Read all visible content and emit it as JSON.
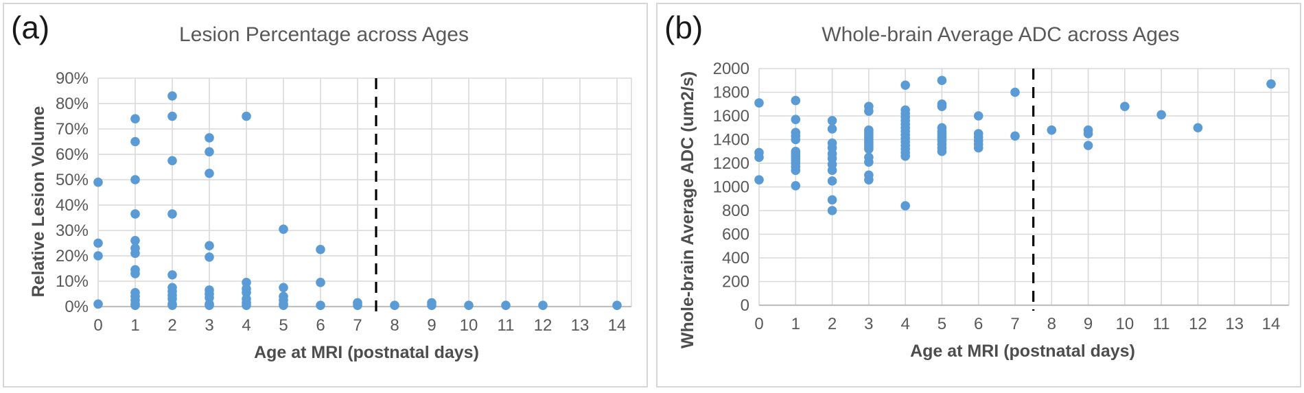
{
  "figure": {
    "panels": [
      {
        "label": "(a)"
      },
      {
        "label": "(b)"
      }
    ]
  },
  "colors": {
    "marker": "#5b9bd5",
    "gridline": "#d9d9d9",
    "axis_line": "#bfbfbf",
    "text": "#595959",
    "reference_line": "#000000",
    "panel_border": "#d6d6d6",
    "background": "#ffffff"
  },
  "chart_data": [
    {
      "type": "scatter",
      "title": "Lesion Percentage across Ages",
      "xlabel": "Age at MRI (postnatal days)",
      "ylabel": "Relative Lesion Volume",
      "xlim": [
        0,
        14
      ],
      "ylim": [
        0,
        90
      ],
      "x_ticks": [
        0,
        1,
        2,
        3,
        4,
        5,
        6,
        7,
        8,
        9,
        10,
        11,
        12,
        13,
        14
      ],
      "x_tick_labels": [
        "0",
        "1",
        "2",
        "3",
        "4",
        "5",
        "6",
        "7",
        "8",
        "9",
        "10",
        "11",
        "12",
        "13",
        "14"
      ],
      "y_ticks": [
        0,
        10,
        20,
        30,
        40,
        50,
        60,
        70,
        80,
        90
      ],
      "y_tick_labels": [
        "0%",
        "10%",
        "20%",
        "30%",
        "40%",
        "50%",
        "60%",
        "70%",
        "80%",
        "90%"
      ],
      "grid": true,
      "legend": "none",
      "reference_line_x": 7.5,
      "points": [
        [
          0,
          49
        ],
        [
          0,
          25
        ],
        [
          0,
          20
        ],
        [
          0,
          1
        ],
        [
          1,
          74
        ],
        [
          1,
          65
        ],
        [
          1,
          50
        ],
        [
          1,
          36.5
        ],
        [
          1,
          26
        ],
        [
          1,
          23
        ],
        [
          1,
          21
        ],
        [
          1,
          14.5
        ],
        [
          1,
          13
        ],
        [
          1,
          5.5
        ],
        [
          1,
          4
        ],
        [
          1,
          2.5
        ],
        [
          1,
          1
        ],
        [
          1,
          0.5
        ],
        [
          2,
          83
        ],
        [
          2,
          75
        ],
        [
          2,
          57.5
        ],
        [
          2,
          36.5
        ],
        [
          2,
          12.5
        ],
        [
          2,
          7.5
        ],
        [
          2,
          6
        ],
        [
          2,
          4.5
        ],
        [
          2,
          3
        ],
        [
          2,
          1
        ],
        [
          2,
          0.5
        ],
        [
          3,
          66.5
        ],
        [
          3,
          61
        ],
        [
          3,
          52.5
        ],
        [
          3,
          24
        ],
        [
          3,
          19.5
        ],
        [
          3,
          6.5
        ],
        [
          3,
          5
        ],
        [
          3,
          3.5
        ],
        [
          3,
          1
        ],
        [
          3,
          0.5
        ],
        [
          4,
          75
        ],
        [
          4,
          9.5
        ],
        [
          4,
          7
        ],
        [
          4,
          5.5
        ],
        [
          4,
          3
        ],
        [
          4,
          1.5
        ],
        [
          4,
          0.5
        ],
        [
          5,
          30.5
        ],
        [
          5,
          7.5
        ],
        [
          5,
          4
        ],
        [
          5,
          2.5
        ],
        [
          5,
          1
        ],
        [
          5,
          0.5
        ],
        [
          6,
          22.5
        ],
        [
          6,
          9.5
        ],
        [
          6,
          0.5
        ],
        [
          7,
          1.5
        ],
        [
          7,
          0.5
        ],
        [
          8,
          0.5
        ],
        [
          9,
          1.5
        ],
        [
          9,
          0.5
        ],
        [
          10,
          0.5
        ],
        [
          11,
          0.5
        ],
        [
          12,
          0.5
        ],
        [
          14,
          0.5
        ]
      ]
    },
    {
      "type": "scatter",
      "title": "Whole-brain Average ADC across Ages",
      "xlabel": "Age at MRI (postnatal days)",
      "ylabel": "Whole-brain Average ADC (um2/s)",
      "xlim": [
        0,
        14
      ],
      "ylim": [
        0,
        2000
      ],
      "x_ticks": [
        0,
        1,
        2,
        3,
        4,
        5,
        6,
        7,
        8,
        9,
        10,
        11,
        12,
        13,
        14
      ],
      "x_tick_labels": [
        "0",
        "1",
        "2",
        "3",
        "4",
        "5",
        "6",
        "7",
        "8",
        "9",
        "10",
        "11",
        "12",
        "13",
        "14"
      ],
      "y_ticks": [
        0,
        200,
        400,
        600,
        800,
        1000,
        1200,
        1400,
        1600,
        1800,
        2000
      ],
      "y_tick_labels": [
        "0",
        "200",
        "400",
        "600",
        "800",
        "1000",
        "1200",
        "1400",
        "1600",
        "1800",
        "2000"
      ],
      "grid": true,
      "legend": "none",
      "reference_line_x": 7.5,
      "points": [
        [
          0,
          1710
        ],
        [
          0,
          1290
        ],
        [
          0,
          1250
        ],
        [
          0,
          1060
        ],
        [
          1,
          1730
        ],
        [
          1,
          1570
        ],
        [
          1,
          1460
        ],
        [
          1,
          1430
        ],
        [
          1,
          1400
        ],
        [
          1,
          1300
        ],
        [
          1,
          1280
        ],
        [
          1,
          1260
        ],
        [
          1,
          1240
        ],
        [
          1,
          1220
        ],
        [
          1,
          1200
        ],
        [
          1,
          1170
        ],
        [
          1,
          1140
        ],
        [
          1,
          1010
        ],
        [
          2,
          1560
        ],
        [
          2,
          1490
        ],
        [
          2,
          1370
        ],
        [
          2,
          1330
        ],
        [
          2,
          1280
        ],
        [
          2,
          1240
        ],
        [
          2,
          1190
        ],
        [
          2,
          1140
        ],
        [
          2,
          1050
        ],
        [
          2,
          890
        ],
        [
          2,
          800
        ],
        [
          3,
          1680
        ],
        [
          3,
          1640
        ],
        [
          3,
          1480
        ],
        [
          3,
          1460
        ],
        [
          3,
          1440
        ],
        [
          3,
          1420
        ],
        [
          3,
          1400
        ],
        [
          3,
          1380
        ],
        [
          3,
          1360
        ],
        [
          3,
          1340
        ],
        [
          3,
          1320
        ],
        [
          3,
          1250
        ],
        [
          3,
          1210
        ],
        [
          3,
          1100
        ],
        [
          3,
          1060
        ],
        [
          4,
          1860
        ],
        [
          4,
          1650
        ],
        [
          4,
          1620
        ],
        [
          4,
          1590
        ],
        [
          4,
          1560
        ],
        [
          4,
          1530
        ],
        [
          4,
          1500
        ],
        [
          4,
          1470
        ],
        [
          4,
          1440
        ],
        [
          4,
          1410
        ],
        [
          4,
          1380
        ],
        [
          4,
          1350
        ],
        [
          4,
          1320
        ],
        [
          4,
          1290
        ],
        [
          4,
          1260
        ],
        [
          4,
          840
        ],
        [
          5,
          1900
        ],
        [
          5,
          1700
        ],
        [
          5,
          1680
        ],
        [
          5,
          1500
        ],
        [
          5,
          1470
        ],
        [
          5,
          1450
        ],
        [
          5,
          1430
        ],
        [
          5,
          1410
        ],
        [
          5,
          1390
        ],
        [
          5,
          1360
        ],
        [
          5,
          1330
        ],
        [
          5,
          1300
        ],
        [
          6,
          1600
        ],
        [
          6,
          1450
        ],
        [
          6,
          1420
        ],
        [
          6,
          1390
        ],
        [
          6,
          1360
        ],
        [
          6,
          1330
        ],
        [
          7,
          1800
        ],
        [
          7,
          1430
        ],
        [
          8,
          1480
        ],
        [
          9,
          1480
        ],
        [
          9,
          1450
        ],
        [
          9,
          1350
        ],
        [
          10,
          1680
        ],
        [
          11,
          1610
        ],
        [
          12,
          1500
        ],
        [
          14,
          1870
        ]
      ]
    }
  ]
}
